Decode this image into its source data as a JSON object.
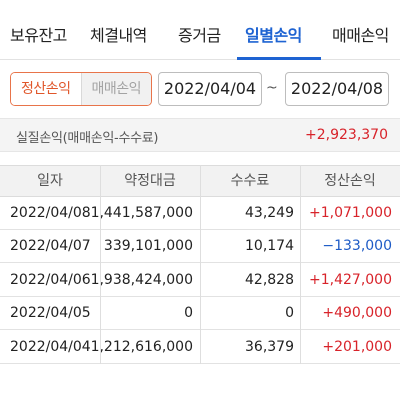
{
  "tabs": [
    {
      "label": "보유잔고",
      "active": false
    },
    {
      "label": "체결내역",
      "active": false
    },
    {
      "label": "증거금",
      "active": false
    },
    {
      "label": "일별손익",
      "active": true
    },
    {
      "label": "매매손익",
      "active": false
    }
  ],
  "filter": {
    "segment": {
      "selected": "정산손익",
      "unselected": "매매손익"
    },
    "date_from": "2022/04/04",
    "separator": "~",
    "date_to": "2022/04/08"
  },
  "summary": {
    "label": "실질손익(매매손익-수수료)",
    "value": "+2,923,370"
  },
  "table": {
    "headers": [
      "일자",
      "약정대금",
      "수수료",
      "정산손익"
    ],
    "rows": [
      {
        "date": "2022/04/08",
        "amount": "1,441,587,000",
        "fee": "43,249",
        "pl": "+1,071,000",
        "sign": "pos"
      },
      {
        "date": "2022/04/07",
        "amount": "339,101,000",
        "fee": "10,174",
        "pl": "−133,000",
        "sign": "neg"
      },
      {
        "date": "2022/04/06",
        "amount": "1,938,424,000",
        "fee": "42,828",
        "pl": "+1,427,000",
        "sign": "pos"
      },
      {
        "date": "2022/04/05",
        "amount": "0",
        "fee": "0",
        "pl": "+490,000",
        "sign": "pos"
      },
      {
        "date": "2022/04/04",
        "amount": "1,212,616,000",
        "fee": "36,379",
        "pl": "+201,000",
        "sign": "pos"
      }
    ]
  },
  "colors": {
    "accent_tab": "#1e63d2",
    "segment_active": "#e0562a",
    "positive": "#d8232a",
    "negative": "#1e5bc6"
  }
}
